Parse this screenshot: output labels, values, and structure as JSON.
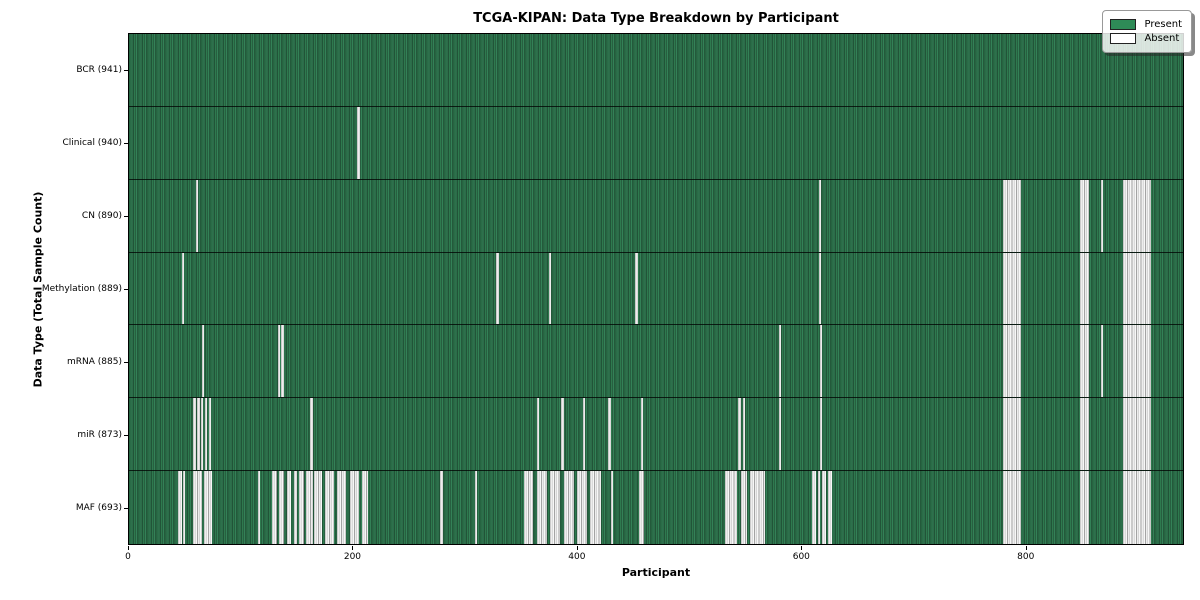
{
  "chart_data": {
    "type": "heatmap",
    "title": "TCGA-KIPAN: Data Type Breakdown by Participant",
    "xlabel": "Participant",
    "ylabel": "Data Type (Total Sample Count)",
    "x_ticks": [
      0,
      200,
      400,
      600,
      800
    ],
    "x_max": 941,
    "grid": false,
    "legend_position": "upper right",
    "legend": [
      {
        "label": "Present",
        "color": "#2e8b57"
      },
      {
        "label": "Absent",
        "color": "#ffffff"
      }
    ],
    "rows": [
      {
        "label": "BCR (941)",
        "data_type": "BCR",
        "sample_count": 941,
        "absent_ranges": []
      },
      {
        "label": "Clinical (940)",
        "data_type": "Clinical",
        "sample_count": 940,
        "absent_ranges": [
          [
            204,
            206
          ]
        ]
      },
      {
        "label": "CN (890)",
        "data_type": "CN",
        "sample_count": 890,
        "absent_ranges": [
          [
            60,
            62
          ],
          [
            616,
            618
          ],
          [
            780,
            796
          ],
          [
            849,
            857
          ],
          [
            868,
            870
          ],
          [
            887,
            912
          ]
        ]
      },
      {
        "label": "Methylation (889)",
        "data_type": "Methylation",
        "sample_count": 889,
        "absent_ranges": [
          [
            47,
            49
          ],
          [
            328,
            330
          ],
          [
            375,
            377
          ],
          [
            452,
            454
          ],
          [
            616,
            618
          ],
          [
            780,
            796
          ],
          [
            849,
            857
          ],
          [
            887,
            912
          ]
        ]
      },
      {
        "label": "mRNA (885)",
        "data_type": "mRNA",
        "sample_count": 885,
        "absent_ranges": [
          [
            65,
            67
          ],
          [
            133,
            135
          ],
          [
            136,
            138
          ],
          [
            580,
            582
          ],
          [
            617,
            619
          ],
          [
            780,
            796
          ],
          [
            849,
            857
          ],
          [
            868,
            870
          ],
          [
            887,
            912
          ]
        ]
      },
      {
        "label": "miR (873)",
        "data_type": "miR",
        "sample_count": 873,
        "absent_ranges": [
          [
            57,
            60
          ],
          [
            61,
            63
          ],
          [
            64,
            66
          ],
          [
            68,
            70
          ],
          [
            71,
            73
          ],
          [
            162,
            164
          ],
          [
            364,
            366
          ],
          [
            386,
            388
          ],
          [
            405,
            407
          ],
          [
            428,
            430
          ],
          [
            457,
            459
          ],
          [
            544,
            546
          ],
          [
            548,
            550
          ],
          [
            580,
            582
          ],
          [
            617,
            619
          ],
          [
            780,
            796
          ],
          [
            849,
            857
          ],
          [
            887,
            912
          ]
        ]
      },
      {
        "label": "MAF (693)",
        "data_type": "MAF",
        "sample_count": 693,
        "absent_ranges": [
          [
            44,
            47
          ],
          [
            48,
            50
          ],
          [
            57,
            65
          ],
          [
            67,
            74
          ],
          [
            115,
            117
          ],
          [
            128,
            132
          ],
          [
            134,
            138
          ],
          [
            141,
            145
          ],
          [
            147,
            150
          ],
          [
            152,
            156
          ],
          [
            158,
            164
          ],
          [
            165,
            172
          ],
          [
            175,
            183
          ],
          [
            186,
            194
          ],
          [
            197,
            205
          ],
          [
            208,
            213
          ],
          [
            278,
            280
          ],
          [
            309,
            311
          ],
          [
            353,
            361
          ],
          [
            364,
            373
          ],
          [
            376,
            385
          ],
          [
            388,
            397
          ],
          [
            400,
            409
          ],
          [
            412,
            421
          ],
          [
            430,
            432
          ],
          [
            455,
            460
          ],
          [
            532,
            543
          ],
          [
            546,
            552
          ],
          [
            554,
            568
          ],
          [
            610,
            613
          ],
          [
            615,
            617
          ],
          [
            619,
            622
          ],
          [
            624,
            628
          ],
          [
            780,
            796
          ],
          [
            849,
            857
          ],
          [
            887,
            912
          ]
        ]
      }
    ],
    "colors": {
      "present": "#2e8b57",
      "absent": "#ffffff",
      "row_divider": "#000000",
      "plot_border": "#000000"
    }
  }
}
